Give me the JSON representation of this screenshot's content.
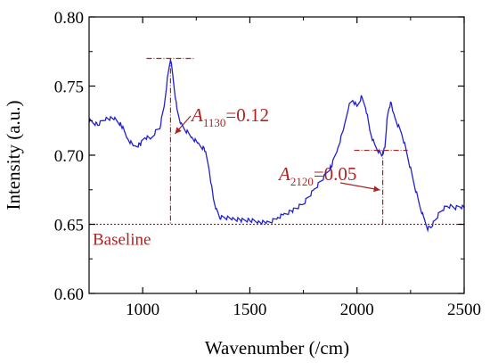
{
  "chart_data": {
    "type": "line",
    "xlabel": "Wavenumber (/cm)",
    "ylabel": "Intensity (a.u.)",
    "xlim": [
      750,
      2500
    ],
    "ylim": [
      0.6,
      0.8
    ],
    "x_ticks": [
      1000,
      1500,
      2000,
      2500
    ],
    "x_tick_labels": [
      "1000",
      "1500",
      "2000",
      "2500"
    ],
    "y_ticks": [
      0.6,
      0.65,
      0.7,
      0.75,
      0.8
    ],
    "y_tick_labels": [
      "0.60",
      "0.65",
      "0.70",
      "0.75",
      "0.80"
    ],
    "grid": false,
    "series": [
      {
        "color": "#2222cc",
        "x": [
          750,
          790,
          830,
          870,
          900,
          930,
          960,
          990,
          1010,
          1040,
          1060,
          1080,
          1100,
          1115,
          1130,
          1145,
          1160,
          1180,
          1200,
          1230,
          1260,
          1290,
          1310,
          1330,
          1345,
          1360,
          1380,
          1420,
          1460,
          1500,
          1540,
          1580,
          1600,
          1630,
          1660,
          1700,
          1750,
          1800,
          1850,
          1880,
          1910,
          1940,
          1960,
          1980,
          2000,
          2020,
          2040,
          2060,
          2080,
          2100,
          2115,
          2130,
          2140,
          2150,
          2160,
          2170,
          2190,
          2210,
          2230,
          2250,
          2270,
          2290,
          2310,
          2330,
          2345,
          2360,
          2380,
          2400,
          2420,
          2440,
          2460,
          2480,
          2500
        ],
        "y": [
          0.725,
          0.722,
          0.727,
          0.726,
          0.722,
          0.712,
          0.706,
          0.708,
          0.713,
          0.712,
          0.717,
          0.72,
          0.735,
          0.755,
          0.77,
          0.752,
          0.733,
          0.722,
          0.718,
          0.713,
          0.708,
          0.704,
          0.69,
          0.668,
          0.66,
          0.655,
          0.655,
          0.654,
          0.653,
          0.653,
          0.652,
          0.651,
          0.652,
          0.655,
          0.657,
          0.66,
          0.665,
          0.675,
          0.685,
          0.692,
          0.705,
          0.72,
          0.735,
          0.74,
          0.735,
          0.742,
          0.735,
          0.718,
          0.708,
          0.703,
          0.7,
          0.705,
          0.725,
          0.735,
          0.738,
          0.73,
          0.722,
          0.715,
          0.703,
          0.69,
          0.677,
          0.665,
          0.655,
          0.647,
          0.648,
          0.652,
          0.657,
          0.661,
          0.663,
          0.663,
          0.662,
          0.663,
          0.662
        ]
      }
    ],
    "baseline": {
      "label": "Baseline",
      "value": 0.65,
      "color": "#b02222"
    },
    "annotations": [
      {
        "symbol": "A",
        "subscript": "1130",
        "text": "=0.12",
        "peak_x": 1130,
        "peak_y": 0.77,
        "color": "#b02222"
      },
      {
        "symbol": "A",
        "subscript": "2120",
        "text": "=0.05",
        "peak_x": 2120,
        "peak_y": 0.7035,
        "color": "#b02222"
      }
    ]
  }
}
